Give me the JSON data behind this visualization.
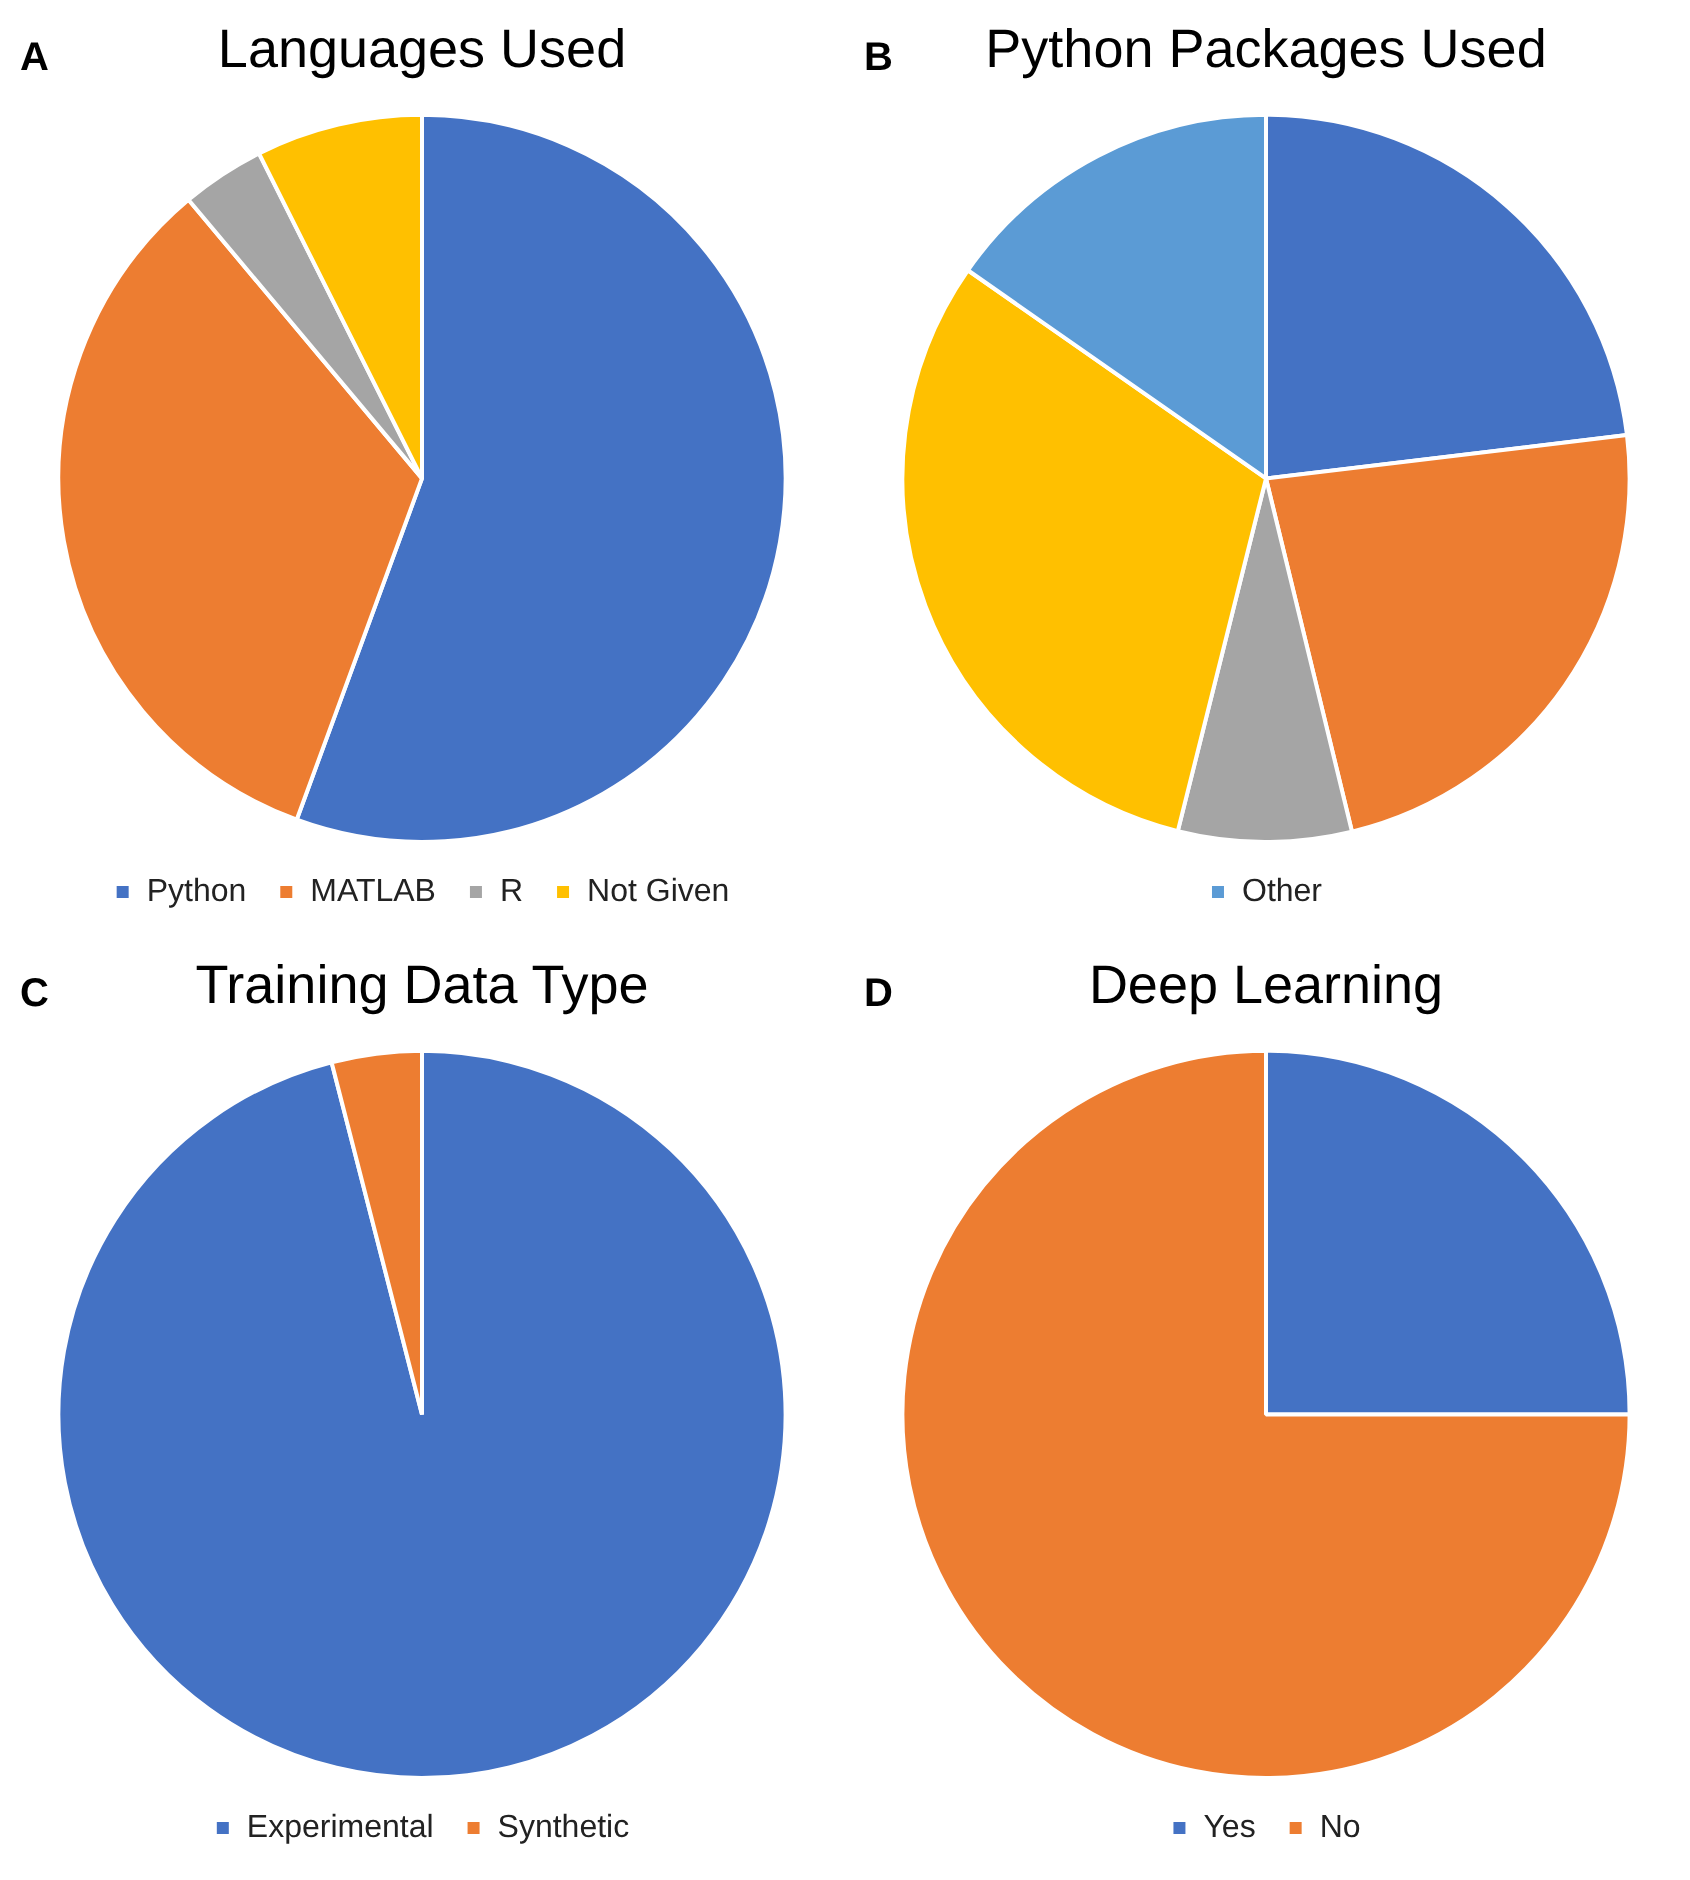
{
  "chart_data": [
    {
      "type": "pie",
      "title": "Languages Used",
      "annotations": [
        "A"
      ],
      "categories": [
        "Python",
        "MATLAB",
        "R",
        "Not Given"
      ],
      "values": [
        55.6,
        33.3,
        3.7,
        7.4
      ],
      "colors": [
        "#4472c4",
        "#ed7d31",
        "#a5a5a5",
        "#ffc000"
      ],
      "legend": "bottom"
    },
    {
      "type": "pie",
      "title": "Python Packages Used",
      "annotations": [
        "B"
      ],
      "categories": [
        null,
        null,
        null,
        null,
        "Other"
      ],
      "values": [
        23.1,
        23.1,
        7.7,
        30.8,
        15.3
      ],
      "colors": [
        "#4472c4",
        "#ed7d31",
        "#a5a5a5",
        "#ffc000",
        "#5b9bd5"
      ],
      "legend": "bottom"
    },
    {
      "type": "pie",
      "title": "Training Data Type",
      "annotations": [
        "C"
      ],
      "categories": [
        "Experimental",
        "Synthetic"
      ],
      "values": [
        96,
        4
      ],
      "colors": [
        "#4472c4",
        "#ed7d31"
      ],
      "legend": "bottom"
    },
    {
      "type": "pie",
      "title": "Deep Learning",
      "annotations": [
        "D"
      ],
      "categories": [
        "Yes",
        "No"
      ],
      "values": [
        25,
        75
      ],
      "colors": [
        "#4472c4",
        "#ed7d31"
      ],
      "legend": "bottom"
    }
  ]
}
